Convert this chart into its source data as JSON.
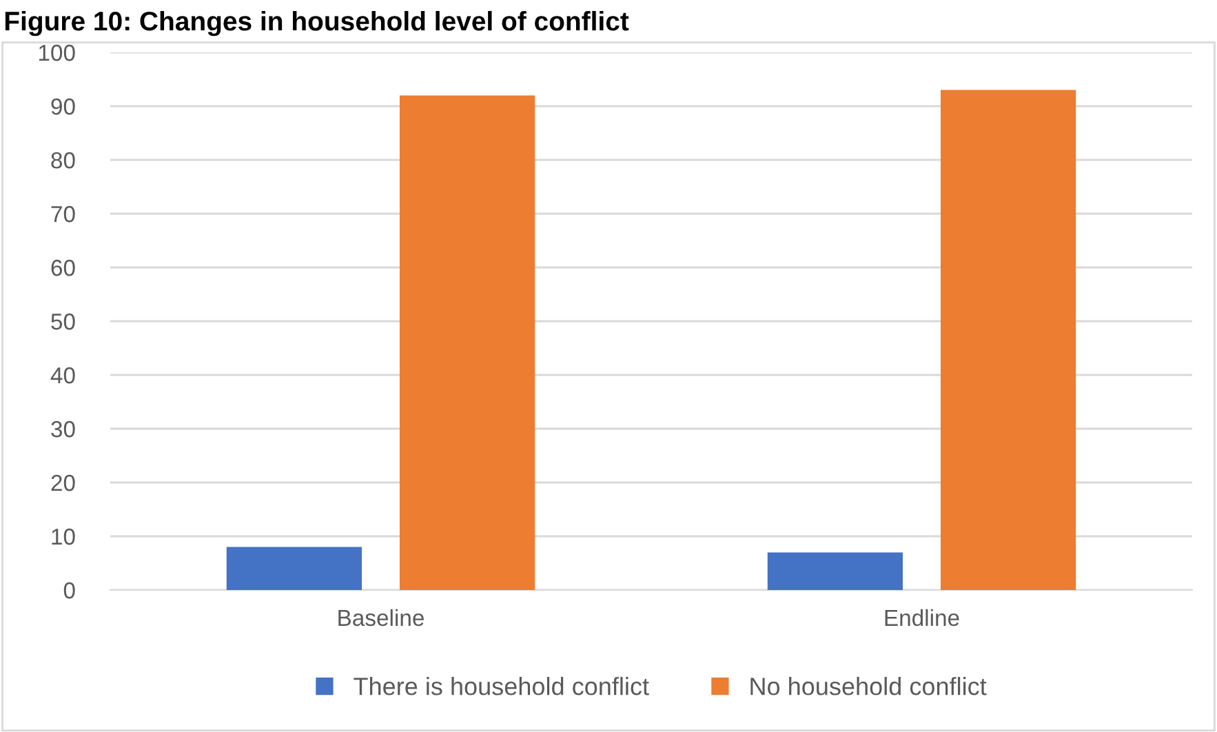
{
  "chart_data": {
    "type": "bar",
    "title": "Figure 10: Changes in household level of conflict",
    "categories": [
      "Baseline",
      "Endline"
    ],
    "series": [
      {
        "name": "There is household conflict",
        "color": "#4472c4",
        "values": [
          8,
          7
        ]
      },
      {
        "name": "No household conflict",
        "color": "#ed7d31",
        "values": [
          92,
          93
        ]
      }
    ],
    "ylim": [
      0,
      100
    ],
    "yticks": [
      0,
      10,
      20,
      30,
      40,
      50,
      60,
      70,
      80,
      90,
      100
    ],
    "grid": "y",
    "legend": "bottom"
  }
}
